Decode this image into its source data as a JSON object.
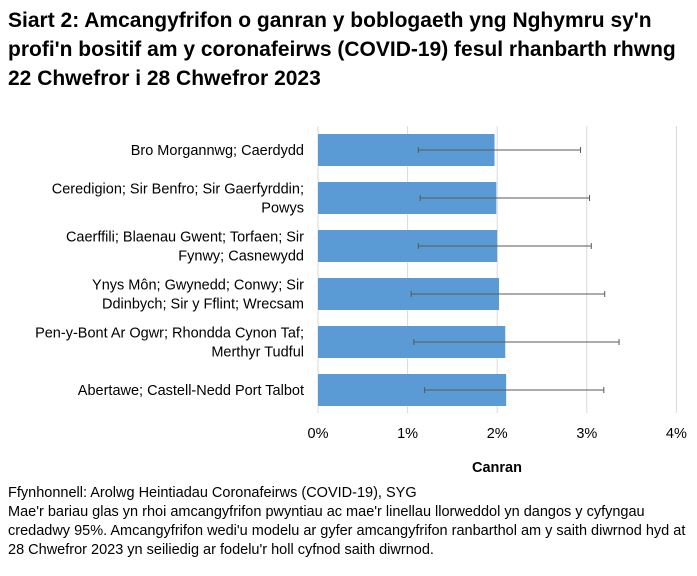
{
  "chart_data": {
    "type": "bar",
    "orientation": "horizontal",
    "title": "Siart 2: Amcangyfrifon o ganran y boblogaeth yng Nghymru sy'n profi'n bositif am y coronafeirws (COVID-19) fesul rhanbarth rhwng 22 Chwefror i 28 Chwefror 2023",
    "categories": [
      [
        "Bro Morgannwg; Caerdydd"
      ],
      [
        "Ceredigion; Sir Benfro; Sir Gaerfyrddin;",
        "Powys"
      ],
      [
        "Caerffili; Blaenau Gwent; Torfaen; Sir",
        "Fynwy; Casnewydd"
      ],
      [
        "Ynys Môn; Gwynedd; Conwy; Sir",
        "Ddinbych; Sir y Fflint; Wrecsam"
      ],
      [
        "Pen-y-Bont Ar Ogwr; Rhondda Cynon Taf;",
        "Merthyr Tudful"
      ],
      [
        "Abertawe; Castell-Nedd Port Talbot"
      ]
    ],
    "values": [
      1.97,
      1.99,
      2.0,
      2.02,
      2.09,
      2.1
    ],
    "ci_lower": [
      1.12,
      1.14,
      1.12,
      1.04,
      1.07,
      1.19
    ],
    "ci_upper": [
      2.93,
      3.03,
      3.05,
      3.2,
      3.36,
      3.19
    ],
    "xlabel": "Canran",
    "xlim": [
      0,
      4
    ],
    "xticks": [
      "0%",
      "1%",
      "2%",
      "3%",
      "4%"
    ],
    "grid": true,
    "bar_color": "#5B9BD5",
    "errorbar_color": "#595959",
    "grid_color": "#D9D9D9"
  },
  "notes": {
    "source": "Ffynhonnell: Arolwg Heintiadau Coronafeirws (COVID-19), SYG",
    "description": "Mae'r bariau glas yn rhoi amcangyfrifon pwyntiau ac mae'r linellau llorweddol yn dangos y cyfyngau credadwy 95%. Amcangyfrifon wedi'u modelu ar gyfer amcangyfrifon ranbarthol am y saith diwrnod hyd at 28 Chwefror 2023 yn seiliedig ar fodelu'r holl cyfnod saith diwrnod."
  }
}
